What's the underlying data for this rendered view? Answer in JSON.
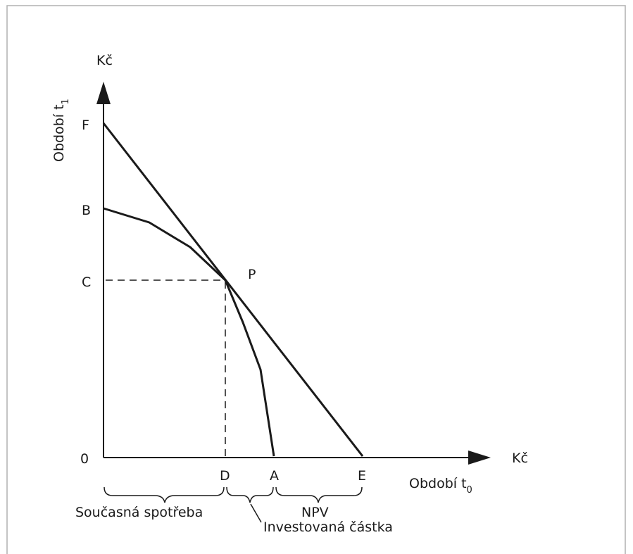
{
  "diagram": {
    "y_axis": {
      "unit": "Kč",
      "title_main": "Období t",
      "title_sub": "1"
    },
    "x_axis": {
      "unit": "Kč",
      "title_main": "Období t",
      "title_sub": "0"
    },
    "points": {
      "F": "F",
      "B": "B",
      "C": "C",
      "O": "0",
      "P": "P",
      "D": "D",
      "A": "A",
      "E": "E"
    },
    "braces": {
      "current_consumption": "Současná spotřeba",
      "invested_amount": "Investovaná částka",
      "npv": "NPV"
    }
  }
}
